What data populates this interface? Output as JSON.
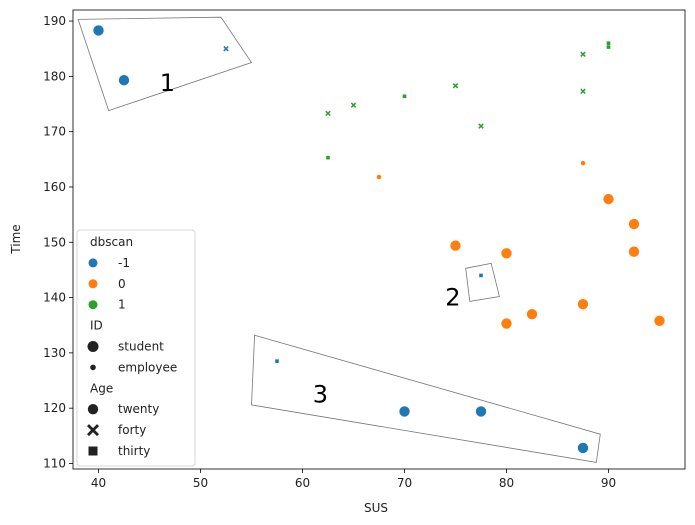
{
  "chart_data": {
    "type": "scatter",
    "xlabel": "SUS",
    "ylabel": "Time",
    "xlim": [
      37.5,
      97.5
    ],
    "ylim": [
      109,
      192
    ],
    "xticks": [
      40,
      50,
      60,
      70,
      80,
      90
    ],
    "yticks": [
      110,
      120,
      130,
      140,
      150,
      160,
      170,
      180,
      190
    ],
    "colors": {
      "-1": "#1f77b4",
      "0": "#ff7f0e",
      "1": "#2ca02c"
    },
    "points": [
      {
        "x": 40,
        "y": 188.3,
        "dbscan": "-1",
        "id": "student",
        "age": "twenty"
      },
      {
        "x": 42.5,
        "y": 179.3,
        "dbscan": "-1",
        "id": "student",
        "age": "twenty"
      },
      {
        "x": 52.5,
        "y": 185.0,
        "dbscan": "-1",
        "id": "employee",
        "age": "forty"
      },
      {
        "x": 77.5,
        "y": 144.0,
        "dbscan": "-1",
        "id": "employee",
        "age": "thirty"
      },
      {
        "x": 57.5,
        "y": 128.5,
        "dbscan": "-1",
        "id": "employee",
        "age": "thirty"
      },
      {
        "x": 70,
        "y": 119.4,
        "dbscan": "-1",
        "id": "student",
        "age": "twenty"
      },
      {
        "x": 77.5,
        "y": 119.4,
        "dbscan": "-1",
        "id": "student",
        "age": "twenty"
      },
      {
        "x": 87.5,
        "y": 112.8,
        "dbscan": "-1",
        "id": "student",
        "age": "twenty"
      },
      {
        "x": 67.5,
        "y": 161.8,
        "dbscan": "0",
        "id": "employee",
        "age": "twenty"
      },
      {
        "x": 87.5,
        "y": 164.3,
        "dbscan": "0",
        "id": "employee",
        "age": "twenty"
      },
      {
        "x": 90,
        "y": 157.8,
        "dbscan": "0",
        "id": "student",
        "age": "twenty"
      },
      {
        "x": 92.5,
        "y": 153.3,
        "dbscan": "0",
        "id": "student",
        "age": "twenty"
      },
      {
        "x": 92.5,
        "y": 148.3,
        "dbscan": "0",
        "id": "student",
        "age": "twenty"
      },
      {
        "x": 75,
        "y": 149.4,
        "dbscan": "0",
        "id": "student",
        "age": "twenty"
      },
      {
        "x": 80,
        "y": 148.0,
        "dbscan": "0",
        "id": "student",
        "age": "twenty"
      },
      {
        "x": 87.5,
        "y": 138.8,
        "dbscan": "0",
        "id": "student",
        "age": "twenty"
      },
      {
        "x": 82.5,
        "y": 137.0,
        "dbscan": "0",
        "id": "student",
        "age": "twenty"
      },
      {
        "x": 80,
        "y": 135.3,
        "dbscan": "0",
        "id": "student",
        "age": "twenty"
      },
      {
        "x": 95,
        "y": 135.8,
        "dbscan": "0",
        "id": "student",
        "age": "twenty"
      },
      {
        "x": 87.5,
        "y": 184.0,
        "dbscan": "1",
        "id": "employee",
        "age": "forty"
      },
      {
        "x": 90,
        "y": 186.0,
        "dbscan": "1",
        "id": "employee",
        "age": "thirty"
      },
      {
        "x": 90,
        "y": 185.3,
        "dbscan": "1",
        "id": "employee",
        "age": "thirty"
      },
      {
        "x": 87.5,
        "y": 177.3,
        "dbscan": "1",
        "id": "employee",
        "age": "forty"
      },
      {
        "x": 75,
        "y": 178.3,
        "dbscan": "1",
        "id": "employee",
        "age": "forty"
      },
      {
        "x": 70,
        "y": 176.4,
        "dbscan": "1",
        "id": "employee",
        "age": "thirty"
      },
      {
        "x": 65,
        "y": 174.8,
        "dbscan": "1",
        "id": "employee",
        "age": "forty"
      },
      {
        "x": 62.5,
        "y": 173.3,
        "dbscan": "1",
        "id": "employee",
        "age": "forty"
      },
      {
        "x": 77.5,
        "y": 171.0,
        "dbscan": "1",
        "id": "employee",
        "age": "forty"
      },
      {
        "x": 62.5,
        "y": 165.3,
        "dbscan": "1",
        "id": "employee",
        "age": "thirty"
      }
    ],
    "clusters": [
      {
        "label": "1",
        "text_at": [
          46,
          178.8
        ],
        "polygon": [
          [
            38,
            190.3
          ],
          [
            52,
            190.7
          ],
          [
            55,
            182.5
          ],
          [
            41,
            173.8
          ]
        ]
      },
      {
        "label": "2",
        "text_at": [
          74,
          140
        ],
        "polygon": [
          [
            76,
            145.3
          ],
          [
            78.5,
            146.2
          ],
          [
            79.3,
            140.2
          ],
          [
            76.4,
            139.3
          ]
        ]
      },
      {
        "label": "3",
        "text_at": [
          61,
          122.5
        ],
        "polygon": [
          [
            55.3,
            133.2
          ],
          [
            89.2,
            115.3
          ],
          [
            88.8,
            110.2
          ],
          [
            55,
            120.6
          ]
        ]
      }
    ],
    "legend": {
      "position": "lower-left",
      "groups": [
        {
          "title": "dbscan",
          "entries": [
            {
              "label": "-1",
              "kind": "color",
              "key": "-1"
            },
            {
              "label": "0",
              "kind": "color",
              "key": "0"
            },
            {
              "label": "1",
              "kind": "color",
              "key": "1"
            }
          ]
        },
        {
          "title": "ID",
          "entries": [
            {
              "label": "student",
              "kind": "size",
              "key": "student"
            },
            {
              "label": "employee",
              "kind": "size",
              "key": "employee"
            }
          ]
        },
        {
          "title": "Age",
          "entries": [
            {
              "label": "twenty",
              "kind": "marker",
              "key": "twenty"
            },
            {
              "label": "forty",
              "kind": "marker",
              "key": "forty"
            },
            {
              "label": "thirty",
              "kind": "marker",
              "key": "thirty"
            }
          ]
        }
      ]
    }
  }
}
